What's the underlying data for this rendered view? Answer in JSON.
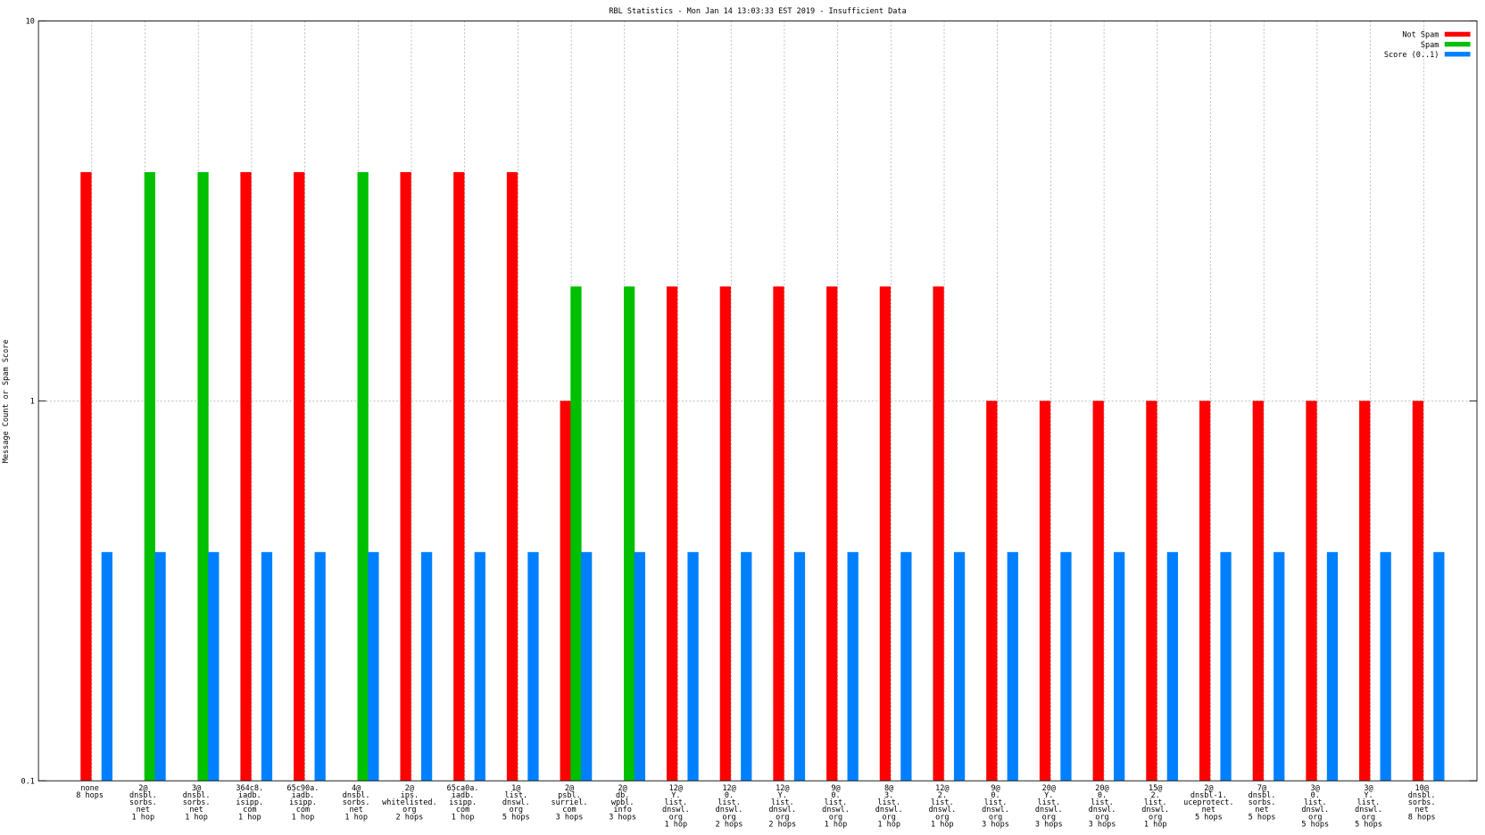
{
  "chart_data": {
    "type": "bar",
    "title": "RBL Statistics - Mon Jan 14 13:03:33 EST 2019 - Insufficient Data",
    "y_label": "Message Count or Spam Score",
    "log_scale": true,
    "grid": true,
    "legend": "top-right",
    "ylim": [
      0.1,
      10
    ],
    "yticks": [
      0.1,
      1,
      10
    ],
    "categories": [
      [
        "none",
        "8 hops"
      ],
      [
        "2@",
        "dnsbl.",
        "sorbs.",
        "net",
        "1 hop"
      ],
      [
        "3@",
        "dnsbl.",
        "sorbs.",
        "net",
        "1 hop"
      ],
      [
        "364c8.",
        "iadb.",
        "isipp.",
        "com",
        "1 hop"
      ],
      [
        "65c90a.",
        "iadb.",
        "isipp.",
        "com",
        "1 hop"
      ],
      [
        "4@",
        "dnsbl.",
        "sorbs.",
        "net",
        "1 hop"
      ],
      [
        "2@",
        "ips.",
        "whitelisted.",
        "org",
        "2 hops"
      ],
      [
        "65ca0a.",
        "iadb.",
        "isipp.",
        "com",
        "1 hop"
      ],
      [
        "1@",
        "list.",
        "dnswl.",
        "org",
        "5 hops"
      ],
      [
        "2@",
        "psbl.",
        "surriel.",
        "com",
        "3 hops"
      ],
      [
        "2@",
        "db.",
        "wpbl.",
        "info",
        "3 hops"
      ],
      [
        "12@",
        "Y.",
        "list.",
        "dnswl.",
        "org",
        "1 hop"
      ],
      [
        "12@",
        "0.",
        "list.",
        "dnswl.",
        "org",
        "2 hops"
      ],
      [
        "12@",
        "Y.",
        "list.",
        "dnswl.",
        "org",
        "2 hops"
      ],
      [
        "9@",
        "0.",
        "list.",
        "dnswl.",
        "org",
        "1 hop"
      ],
      [
        "8@",
        "3.",
        "list.",
        "dnswl.",
        "org",
        "1 hop"
      ],
      [
        "12@",
        "2.",
        "list.",
        "dnswl.",
        "org",
        "1 hop"
      ],
      [
        "9@",
        "0.",
        "list.",
        "dnswl.",
        "org",
        "3 hops"
      ],
      [
        "20@",
        "Y.",
        "list.",
        "dnswl.",
        "org",
        "3 hops"
      ],
      [
        "20@",
        "0.",
        "list.",
        "dnswl.",
        "org",
        "3 hops"
      ],
      [
        "15@",
        "2.",
        "list.",
        "dnswl.",
        "org",
        "1 hop"
      ],
      [
        "2@",
        "dnsbl-1.",
        "uceprotect.",
        "net",
        "5 hops"
      ],
      [
        "7@",
        "dnsbl.",
        "sorbs.",
        "net",
        "5 hops"
      ],
      [
        "3@",
        "0.",
        "list.",
        "dnswl.",
        "org",
        "5 hops"
      ],
      [
        "3@",
        "Y.",
        "list.",
        "dnswl.",
        "org",
        "5 hops"
      ],
      [
        "10@",
        "dnsbl.",
        "sorbs.",
        "net",
        "8 hops"
      ]
    ],
    "series": [
      {
        "name": "Not Spam",
        "color": "#ff0000",
        "values": [
          4,
          null,
          null,
          4,
          4,
          null,
          4,
          4,
          4,
          1,
          null,
          2,
          2,
          2,
          2,
          2,
          2,
          1,
          1,
          1,
          1,
          1,
          1,
          1,
          1,
          1
        ]
      },
      {
        "name": "Spam",
        "color": "#00c000",
        "values": [
          null,
          4,
          4,
          null,
          null,
          4,
          null,
          null,
          null,
          2,
          2,
          null,
          null,
          null,
          null,
          null,
          null,
          null,
          null,
          null,
          null,
          null,
          null,
          null,
          null,
          null
        ]
      },
      {
        "name": "Score (0..1)",
        "color": "#0080ff",
        "values": [
          0.4,
          0.4,
          0.4,
          0.4,
          0.4,
          0.4,
          0.4,
          0.4,
          0.4,
          0.4,
          0.4,
          0.4,
          0.4,
          0.4,
          0.4,
          0.4,
          0.4,
          0.4,
          0.4,
          0.4,
          0.4,
          0.4,
          0.4,
          0.4,
          0.4,
          0.4
        ]
      }
    ]
  }
}
